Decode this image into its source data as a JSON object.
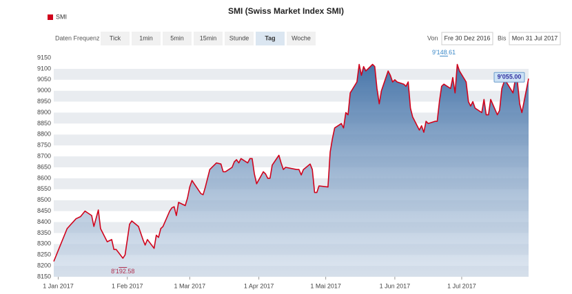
{
  "toolbar": {
    "frequency_label": "Daten Frequenz",
    "frequencies": [
      "Tick",
      "1min",
      "5min",
      "15min",
      "Stunde",
      "Tag",
      "Woche"
    ],
    "selected_frequency": "Tag",
    "from_label": "Von",
    "from": "Fre 30 Dez 2016",
    "to_label": "Bis",
    "to": "Mon 31 Jul 2017"
  },
  "chart_data": {
    "type": "area",
    "title": "SMI (Swiss Market Index SMI)",
    "series": [
      {
        "name": "SMI",
        "color": "#d0021b",
        "x": [
          "2016-12-30",
          "2017-01-03",
          "2017-01-05",
          "2017-01-09",
          "2017-01-11",
          "2017-01-13",
          "2017-01-16",
          "2017-01-17",
          "2017-01-19",
          "2017-01-20",
          "2017-01-23",
          "2017-01-25",
          "2017-01-26",
          "2017-01-27",
          "2017-01-30",
          "2017-01-31",
          "2017-02-02",
          "2017-02-03",
          "2017-02-06",
          "2017-02-08",
          "2017-02-09",
          "2017-02-10",
          "2017-02-13",
          "2017-02-14",
          "2017-02-15",
          "2017-02-16",
          "2017-02-17",
          "2017-02-20",
          "2017-02-21",
          "2017-02-22",
          "2017-02-23",
          "2017-02-24",
          "2017-02-27",
          "2017-02-28",
          "2017-03-01",
          "2017-03-02",
          "2017-03-03",
          "2017-03-06",
          "2017-03-07",
          "2017-03-08",
          "2017-03-10",
          "2017-03-13",
          "2017-03-15",
          "2017-03-16",
          "2017-03-17",
          "2017-03-20",
          "2017-03-21",
          "2017-03-22",
          "2017-03-23",
          "2017-03-24",
          "2017-03-27",
          "2017-03-28",
          "2017-03-29",
          "2017-03-30",
          "2017-03-31",
          "2017-04-03",
          "2017-04-04",
          "2017-04-05",
          "2017-04-06",
          "2017-04-07",
          "2017-04-10",
          "2017-04-11",
          "2017-04-12",
          "2017-04-13",
          "2017-04-18",
          "2017-04-19",
          "2017-04-20",
          "2017-04-21",
          "2017-04-24",
          "2017-04-25",
          "2017-04-26",
          "2017-04-27",
          "2017-04-28",
          "2017-05-02",
          "2017-05-03",
          "2017-05-04",
          "2017-05-05",
          "2017-05-08",
          "2017-05-09",
          "2017-05-10",
          "2017-05-11",
          "2017-05-12",
          "2017-05-15",
          "2017-05-16",
          "2017-05-17",
          "2017-05-18",
          "2017-05-19",
          "2017-05-22",
          "2017-05-23",
          "2017-05-24",
          "2017-05-25",
          "2017-05-26",
          "2017-05-29",
          "2017-05-30",
          "2017-05-31",
          "2017-06-01",
          "2017-06-02",
          "2017-06-05",
          "2017-06-06",
          "2017-06-07",
          "2017-06-08",
          "2017-06-09",
          "2017-06-12",
          "2017-06-13",
          "2017-06-14",
          "2017-06-15",
          "2017-06-16",
          "2017-06-19",
          "2017-06-20",
          "2017-06-21",
          "2017-06-22",
          "2017-06-23",
          "2017-06-26",
          "2017-06-27",
          "2017-06-28",
          "2017-06-29",
          "2017-06-30",
          "2017-07-03",
          "2017-07-04",
          "2017-07-05",
          "2017-07-06",
          "2017-07-07",
          "2017-07-10",
          "2017-07-11",
          "2017-07-12",
          "2017-07-13",
          "2017-07-14",
          "2017-07-17",
          "2017-07-18",
          "2017-07-19",
          "2017-07-20",
          "2017-07-21",
          "2017-07-24",
          "2017-07-25",
          "2017-07-26",
          "2017-07-27",
          "2017-07-28",
          "2017-07-31"
        ],
        "values": [
          8220,
          8320,
          8370,
          8415,
          8425,
          8450,
          8430,
          8380,
          8455,
          8370,
          8310,
          8320,
          8275,
          8275,
          8235,
          8250,
          8390,
          8405,
          8380,
          8320,
          8295,
          8320,
          8280,
          8340,
          8330,
          8370,
          8380,
          8450,
          8465,
          8470,
          8430,
          8490,
          8475,
          8510,
          8560,
          8590,
          8575,
          8530,
          8525,
          8560,
          8640,
          8670,
          8665,
          8630,
          8630,
          8650,
          8675,
          8685,
          8670,
          8690,
          8670,
          8690,
          8690,
          8620,
          8575,
          8630,
          8620,
          8600,
          8600,
          8660,
          8705,
          8670,
          8640,
          8650,
          8640,
          8640,
          8615,
          8640,
          8665,
          8640,
          8535,
          8535,
          8565,
          8560,
          8720,
          8780,
          8830,
          8850,
          8830,
          8900,
          8890,
          8990,
          9040,
          9120,
          9070,
          9110,
          9090,
          9120,
          9110,
          9010,
          8940,
          9000,
          9090,
          9070,
          9040,
          9050,
          9040,
          9030,
          9020,
          9040,
          8920,
          8880,
          8820,
          8840,
          8810,
          8860,
          8850,
          8860,
          8860,
          8950,
          9020,
          9030,
          9010,
          9060,
          8990,
          9120,
          9090,
          9040,
          8950,
          8930,
          8950,
          8920,
          8900,
          8960,
          8890,
          8890,
          8960,
          8890,
          8910,
          9010,
          9040,
          9040,
          8990,
          9050,
          9040,
          8940,
          8900,
          9055
        ]
      }
    ],
    "xlim": [
      "2016-12-30",
      "2017-07-31"
    ],
    "xticks": [
      {
        "value": "2017-01-01",
        "label": "1 Jan 2017"
      },
      {
        "value": "2017-02-01",
        "label": "1 Feb 2017"
      },
      {
        "value": "2017-03-01",
        "label": "1 Mar 2017"
      },
      {
        "value": "2017-04-01",
        "label": "1 Apr 2017"
      },
      {
        "value": "2017-05-01",
        "label": "1 Mai 2017"
      },
      {
        "value": "2017-06-01",
        "label": "1 Jun 2017"
      },
      {
        "value": "2017-07-01",
        "label": "1 Jul 2017"
      }
    ],
    "ylim": [
      8150,
      9150
    ],
    "yticks": [
      8150,
      8200,
      8250,
      8300,
      8350,
      8400,
      8450,
      8500,
      8550,
      8600,
      8650,
      8700,
      8750,
      8800,
      8850,
      8900,
      8950,
      9000,
      9050,
      9100,
      9150
    ],
    "grid": true,
    "annotations": [
      {
        "x": "2017-06-23",
        "value": 9148.61,
        "label": "9'148.61",
        "color": "#3a88c8"
      },
      {
        "x": "2017-01-30",
        "value": 8192.58,
        "label": "8'192.58",
        "color": "#b03050"
      },
      {
        "x": "2017-07-31",
        "value": 9055,
        "label": "9'055.00",
        "color": "#3030a0",
        "box": true
      }
    ]
  }
}
